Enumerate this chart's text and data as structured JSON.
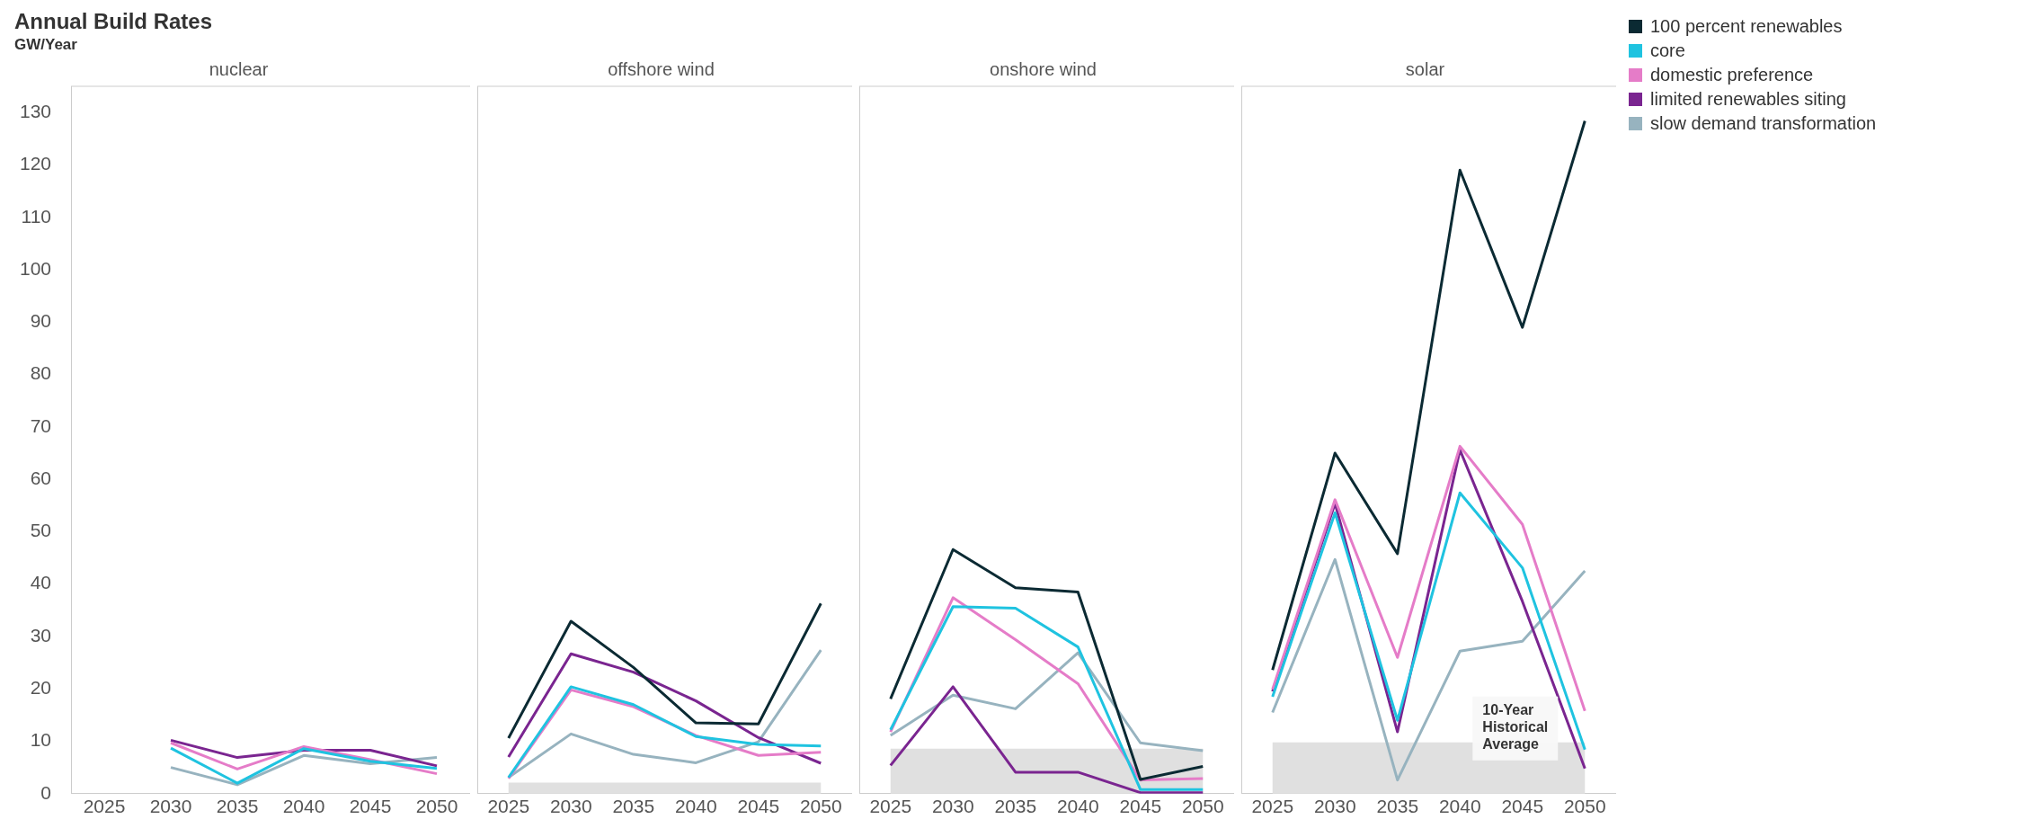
{
  "chart_data": [
    {
      "type": "other",
      "title": "Annual Build Rates",
      "subtitle": "GW/Year"
    },
    {
      "type": "line",
      "title": "nuclear",
      "categories": [
        "2025",
        "2030",
        "2035",
        "2040",
        "2045",
        "2050"
      ],
      "ylim": [
        0,
        135
      ],
      "yticks": [
        0,
        10,
        20,
        30,
        40,
        50,
        60,
        70,
        80,
        90,
        100,
        110,
        120,
        130
      ],
      "grid": false,
      "legend": false,
      "marker": "none",
      "series": [
        {
          "color": "#1fc3e0",
          "values": [
            null,
            8.7,
            2.0,
            8.6,
            6.2,
            4.8
          ]
        },
        {
          "color": "#e57cc8",
          "values": [
            null,
            9.7,
            4.7,
            9.0,
            6.5,
            3.8
          ]
        },
        {
          "color": "#7a2590",
          "values": [
            null,
            10.2,
            6.9,
            8.3,
            8.3,
            5.3
          ]
        },
        {
          "color": "#97b3bf",
          "values": [
            null,
            5.0,
            1.7,
            7.3,
            5.7,
            6.9
          ]
        }
      ]
    },
    {
      "type": "line",
      "title": "offshore wind",
      "categories": [
        "2025",
        "2030",
        "2035",
        "2040",
        "2045",
        "2050"
      ],
      "ylim": [
        0,
        135
      ],
      "tick_labels": "x",
      "grid": false,
      "legend": false,
      "marker": "none",
      "bands": [
        {
          "axis": "y",
          "from": 0,
          "to": 2.1,
          "color": "#e0e0e0"
        }
      ],
      "series": [
        {
          "color": "#0b2a33",
          "values": [
            10.6,
            32.9,
            24.1,
            13.5,
            13.3,
            36.3
          ]
        },
        {
          "color": "#1fc3e0",
          "values": [
            3.1,
            20.4,
            17.0,
            10.9,
            9.4,
            9.1
          ]
        },
        {
          "color": "#e57cc8",
          "values": [
            2.9,
            19.8,
            16.6,
            11.1,
            7.3,
            7.9
          ]
        },
        {
          "color": "#7a2590",
          "values": [
            7.0,
            26.7,
            23.2,
            17.7,
            10.7,
            5.8
          ]
        },
        {
          "color": "#97b3bf",
          "values": [
            3.1,
            11.4,
            7.5,
            5.9,
            9.9,
            27.4
          ]
        }
      ]
    },
    {
      "type": "line",
      "title": "onshore wind",
      "categories": [
        "2025",
        "2030",
        "2035",
        "2040",
        "2045",
        "2050"
      ],
      "ylim": [
        0,
        135
      ],
      "tick_labels": "x",
      "grid": false,
      "legend": false,
      "marker": "none",
      "bands": [
        {
          "axis": "y",
          "from": 0,
          "to": 8.6,
          "color": "#e0e0e0"
        }
      ],
      "series": [
        {
          "color": "#0b2a33",
          "values": [
            18.1,
            46.6,
            39.3,
            38.5,
            2.7,
            5.2
          ]
        },
        {
          "color": "#1fc3e0",
          "values": [
            12.2,
            35.7,
            35.4,
            28.0,
            0.8,
            0.8
          ]
        },
        {
          "color": "#e57cc8",
          "values": [
            11.8,
            37.4,
            29.4,
            21.0,
            2.6,
            2.9
          ]
        },
        {
          "color": "#7a2590",
          "values": [
            5.4,
            20.4,
            4.1,
            4.1,
            0.2,
            0.2
          ]
        },
        {
          "color": "#97b3bf",
          "values": [
            11.1,
            18.8,
            16.2,
            26.9,
            9.7,
            8.2
          ]
        }
      ]
    },
    {
      "type": "line",
      "title": "solar",
      "categories": [
        "2025",
        "2030",
        "2035",
        "2040",
        "2045",
        "2050"
      ],
      "ylim": [
        0,
        135
      ],
      "tick_labels": "x",
      "grid": false,
      "legend": "right",
      "marker": "none",
      "bands": [
        {
          "axis": "y",
          "from": 0,
          "to": 9.8,
          "color": "#e0e0e0",
          "label": "10-Year Historical Average"
        }
      ],
      "series": [
        {
          "name": "100 percent renewables",
          "color": "#0b2a33",
          "values": [
            23.6,
            65.0,
            45.8,
            119.0,
            89.0,
            128.4
          ]
        },
        {
          "name": "core",
          "color": "#1fc3e0",
          "values": [
            18.5,
            53.6,
            14.0,
            57.4,
            43.1,
            8.4
          ]
        },
        {
          "name": "domestic preference",
          "color": "#e57cc8",
          "values": [
            19.9,
            56.1,
            26.0,
            66.3,
            51.4,
            15.8
          ]
        },
        {
          "name": "limited renewables siting",
          "color": "#7a2590",
          "values": [
            19.5,
            55.4,
            11.8,
            65.6,
            36.7,
            4.8
          ]
        },
        {
          "name": "slow demand transformation",
          "color": "#97b3bf",
          "values": [
            15.5,
            44.7,
            2.6,
            27.2,
            29.1,
            42.5
          ]
        }
      ]
    }
  ]
}
